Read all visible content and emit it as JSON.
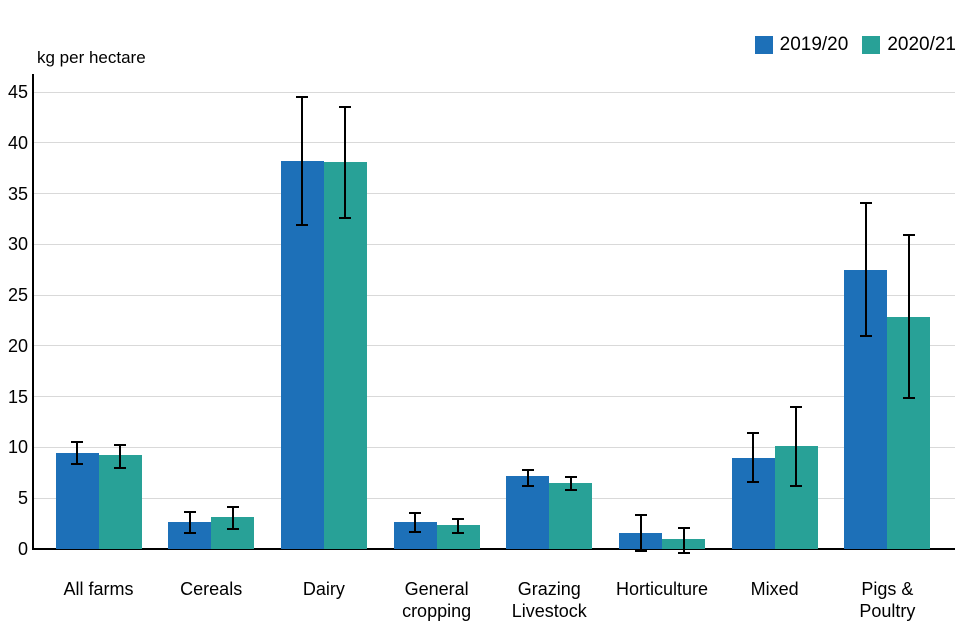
{
  "chart_data": {
    "type": "bar",
    "title": "kg per hectare",
    "categories": [
      "All farms",
      "Cereals",
      "Dairy",
      "General\ncropping",
      "Grazing\nLivestock",
      "Horticulture",
      "Mixed",
      "Pigs &\nPoultry"
    ],
    "series": [
      {
        "name": "2019/20",
        "color": "#1d70b8",
        "values": [
          9.5,
          2.7,
          38.2,
          2.7,
          7.2,
          1.6,
          9.0,
          27.5
        ],
        "error_low": [
          8.4,
          1.6,
          31.9,
          1.7,
          6.2,
          -0.2,
          6.6,
          21.0
        ],
        "error_high": [
          10.5,
          3.6,
          44.5,
          3.5,
          7.8,
          3.3,
          11.4,
          34.1
        ]
      },
      {
        "name": "2020/21",
        "color": "#28a197",
        "values": [
          9.3,
          3.2,
          38.1,
          2.4,
          6.5,
          1.0,
          10.1,
          22.8
        ],
        "error_low": [
          8.0,
          2.0,
          32.6,
          1.6,
          5.8,
          -0.4,
          6.2,
          14.9
        ],
        "error_high": [
          10.2,
          4.1,
          43.5,
          3.0,
          7.1,
          2.1,
          14.0,
          30.9
        ]
      }
    ],
    "ylim": [
      0,
      45
    ],
    "ytick_step": 5,
    "ytick_labels": [
      "0",
      "5",
      "10",
      "15",
      "20",
      "25",
      "30",
      "35",
      "40",
      "45"
    ],
    "grid": true,
    "error_bars": true,
    "legend_position": "top-right"
  },
  "colors": {
    "background": "#ffffff",
    "gridline": "#d9d9d9",
    "axis": "#000000",
    "text": "#000000"
  }
}
